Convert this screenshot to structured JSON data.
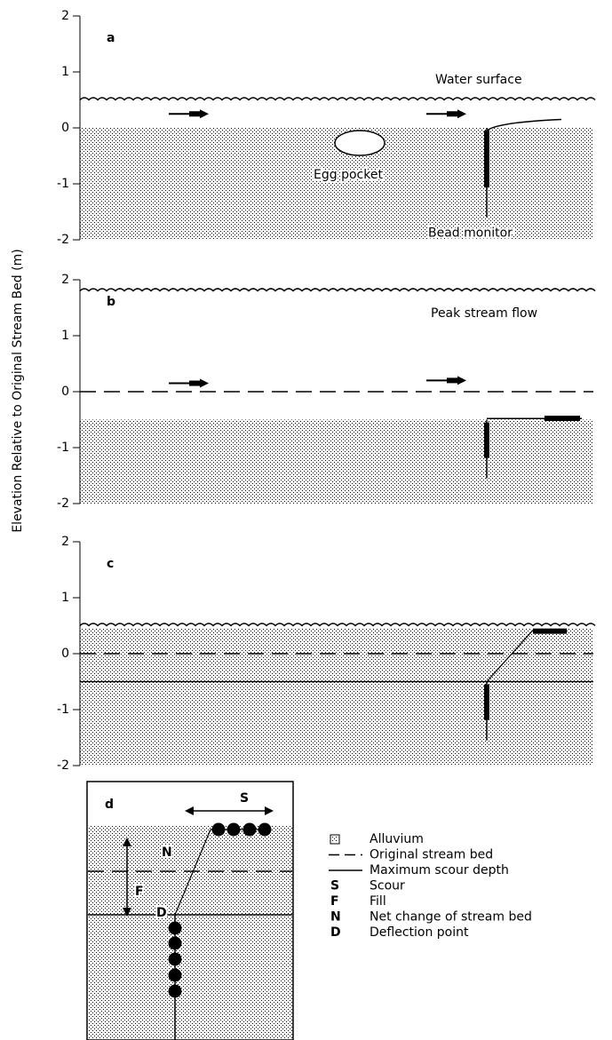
{
  "y_axis_label": "Elevation Relative to Original Stream Bed (m)",
  "yticks": [
    2,
    1,
    0,
    -1,
    -2
  ],
  "panels": [
    {
      "label": "a",
      "annotations": [
        "Water surface",
        "Egg pocket",
        "Bead monitor"
      ]
    },
    {
      "label": "b",
      "annotations": [
        "Peak stream flow"
      ]
    },
    {
      "label": "c",
      "annotations": []
    }
  ],
  "inset": {
    "label": "d",
    "markers": [
      "S",
      "F",
      "N",
      "D"
    ]
  },
  "legend": [
    {
      "symbol": "",
      "text": "Alluvium"
    },
    {
      "symbol": "",
      "text": "Original stream bed"
    },
    {
      "symbol": "",
      "text": "Maximum scour depth"
    },
    {
      "symbol": "S",
      "text": "Scour"
    },
    {
      "symbol": "F",
      "text": "Fill"
    },
    {
      "symbol": "N",
      "text": "Net change of stream bed"
    },
    {
      "symbol": "D",
      "text": "Deflection point"
    }
  ]
}
